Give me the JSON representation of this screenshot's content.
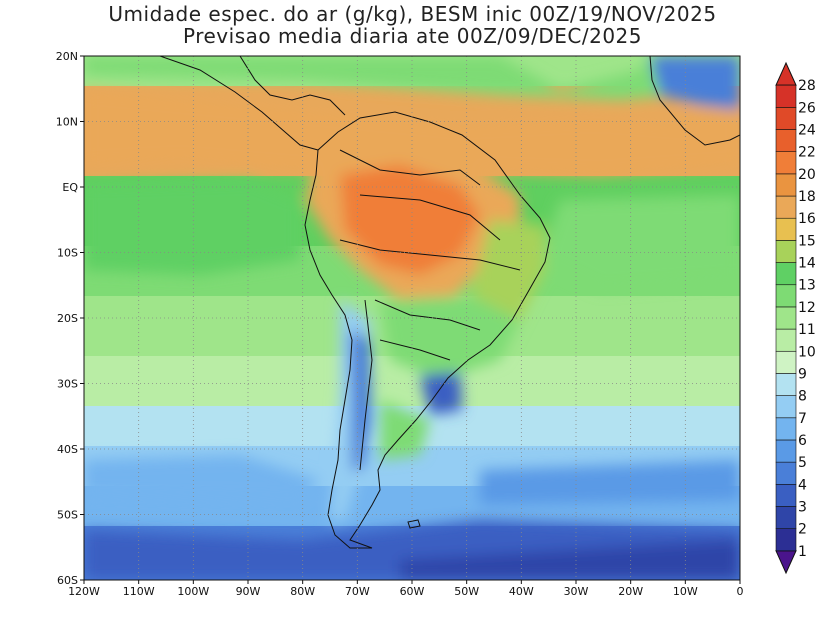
{
  "title": {
    "line1": "Umidade espec. do ar (g/kg), BESM inic 00Z/19/NOV/2025",
    "line2": "Previsao media diaria ate 00Z/09/DEC/2025"
  },
  "map": {
    "lon_range": [
      -120,
      0
    ],
    "lat_range": [
      -60,
      20
    ],
    "x_ticks": [
      "120W",
      "110W",
      "100W",
      "90W",
      "80W",
      "70W",
      "60W",
      "50W",
      "40W",
      "30W",
      "20W",
      "10W",
      "0"
    ],
    "y_ticks": [
      "20N",
      "10N",
      "EQ",
      "10S",
      "20S",
      "30S",
      "40S",
      "50S",
      "60S"
    ],
    "grid": "dotted"
  },
  "colorbar": {
    "levels": [
      "1",
      "2",
      "3",
      "4",
      "5",
      "6",
      "7",
      "8",
      "9",
      "10",
      "11",
      "12",
      "13",
      "14",
      "15",
      "16",
      "18",
      "20",
      "22",
      "24",
      "26",
      "28"
    ],
    "colors": [
      "#4a148c",
      "#2c2f94",
      "#2f45a8",
      "#3a5fc2",
      "#4a7fd8",
      "#5a9ae6",
      "#73b4ef",
      "#94cdf3",
      "#b3e2f1",
      "#cff3c4",
      "#b9eda5",
      "#9fe58a",
      "#7edb74",
      "#5fd064",
      "#a8d25a",
      "#e8c050",
      "#eaa858",
      "#ea9440",
      "#f07e38",
      "#e8602c",
      "#e04a28",
      "#d63228"
    ]
  },
  "field_colors": {
    "ocean_north": "#e8a85a",
    "ocean_tropical": "#5fcf5f",
    "ocean_mid": "#9fe58a",
    "ocean_south": "#73b4ef",
    "ocean_far_south": "#3a5fc2",
    "amazon": "#f07e38",
    "andes": "#5a9ae6"
  }
}
